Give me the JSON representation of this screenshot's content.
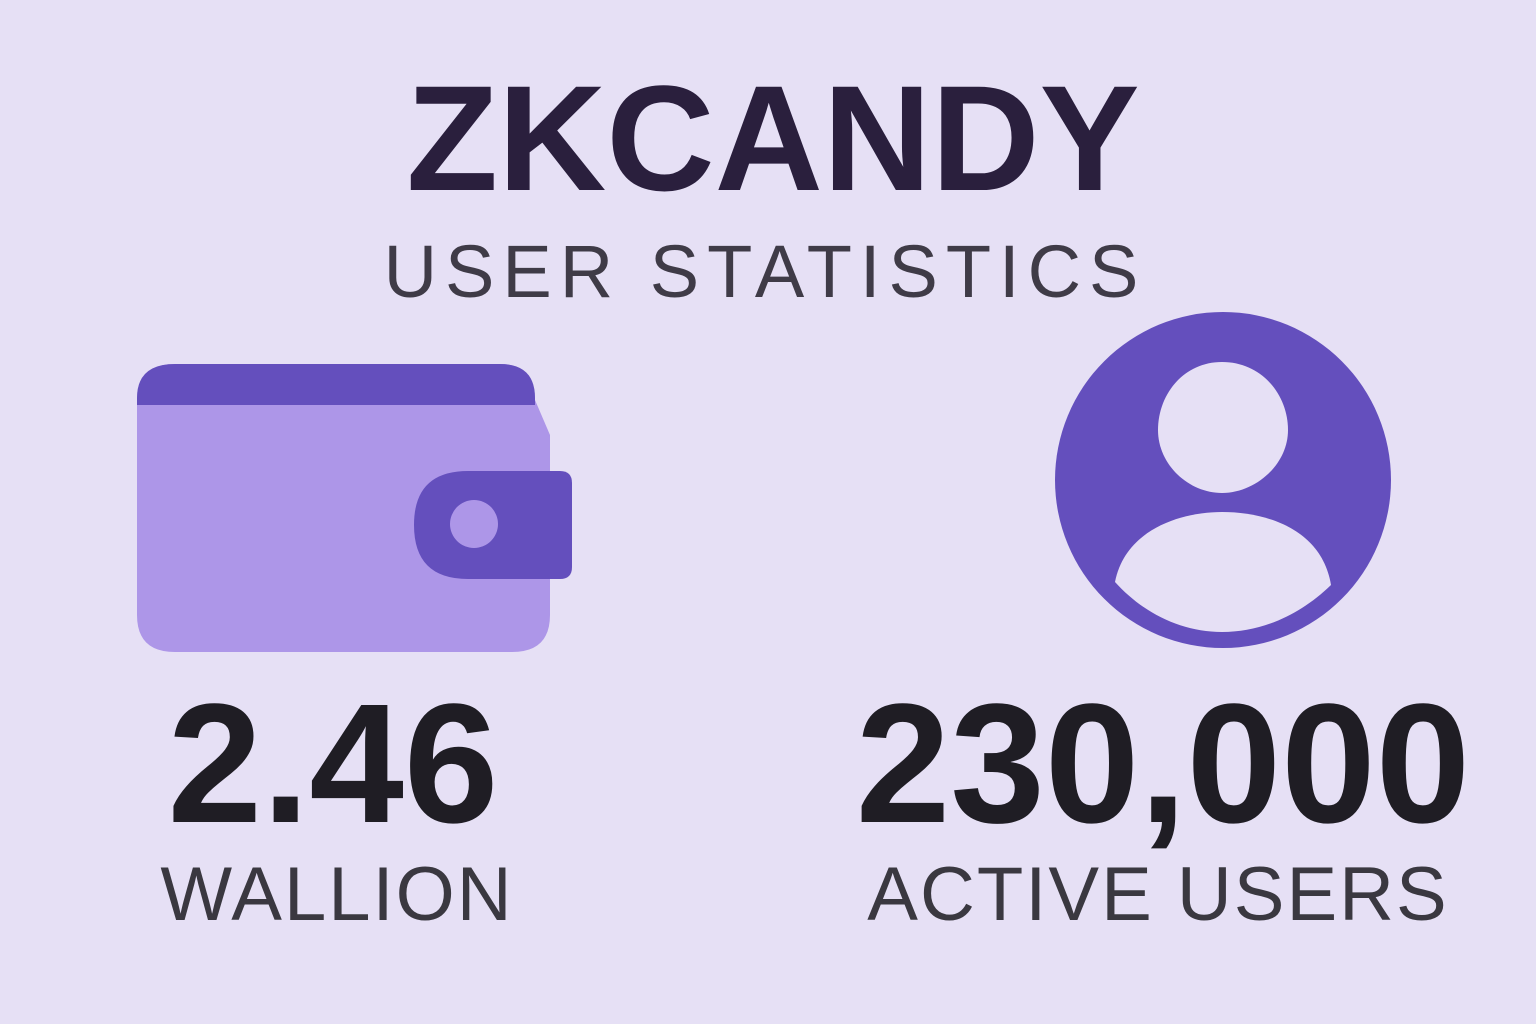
{
  "header": {
    "title": "ZKCANDY",
    "subtitle": "USER STATISTICS"
  },
  "stats": [
    {
      "value": "2.46",
      "label": "WALLION"
    },
    {
      "value": "230,000",
      "label": "ACTIVE USERS"
    }
  ]
}
